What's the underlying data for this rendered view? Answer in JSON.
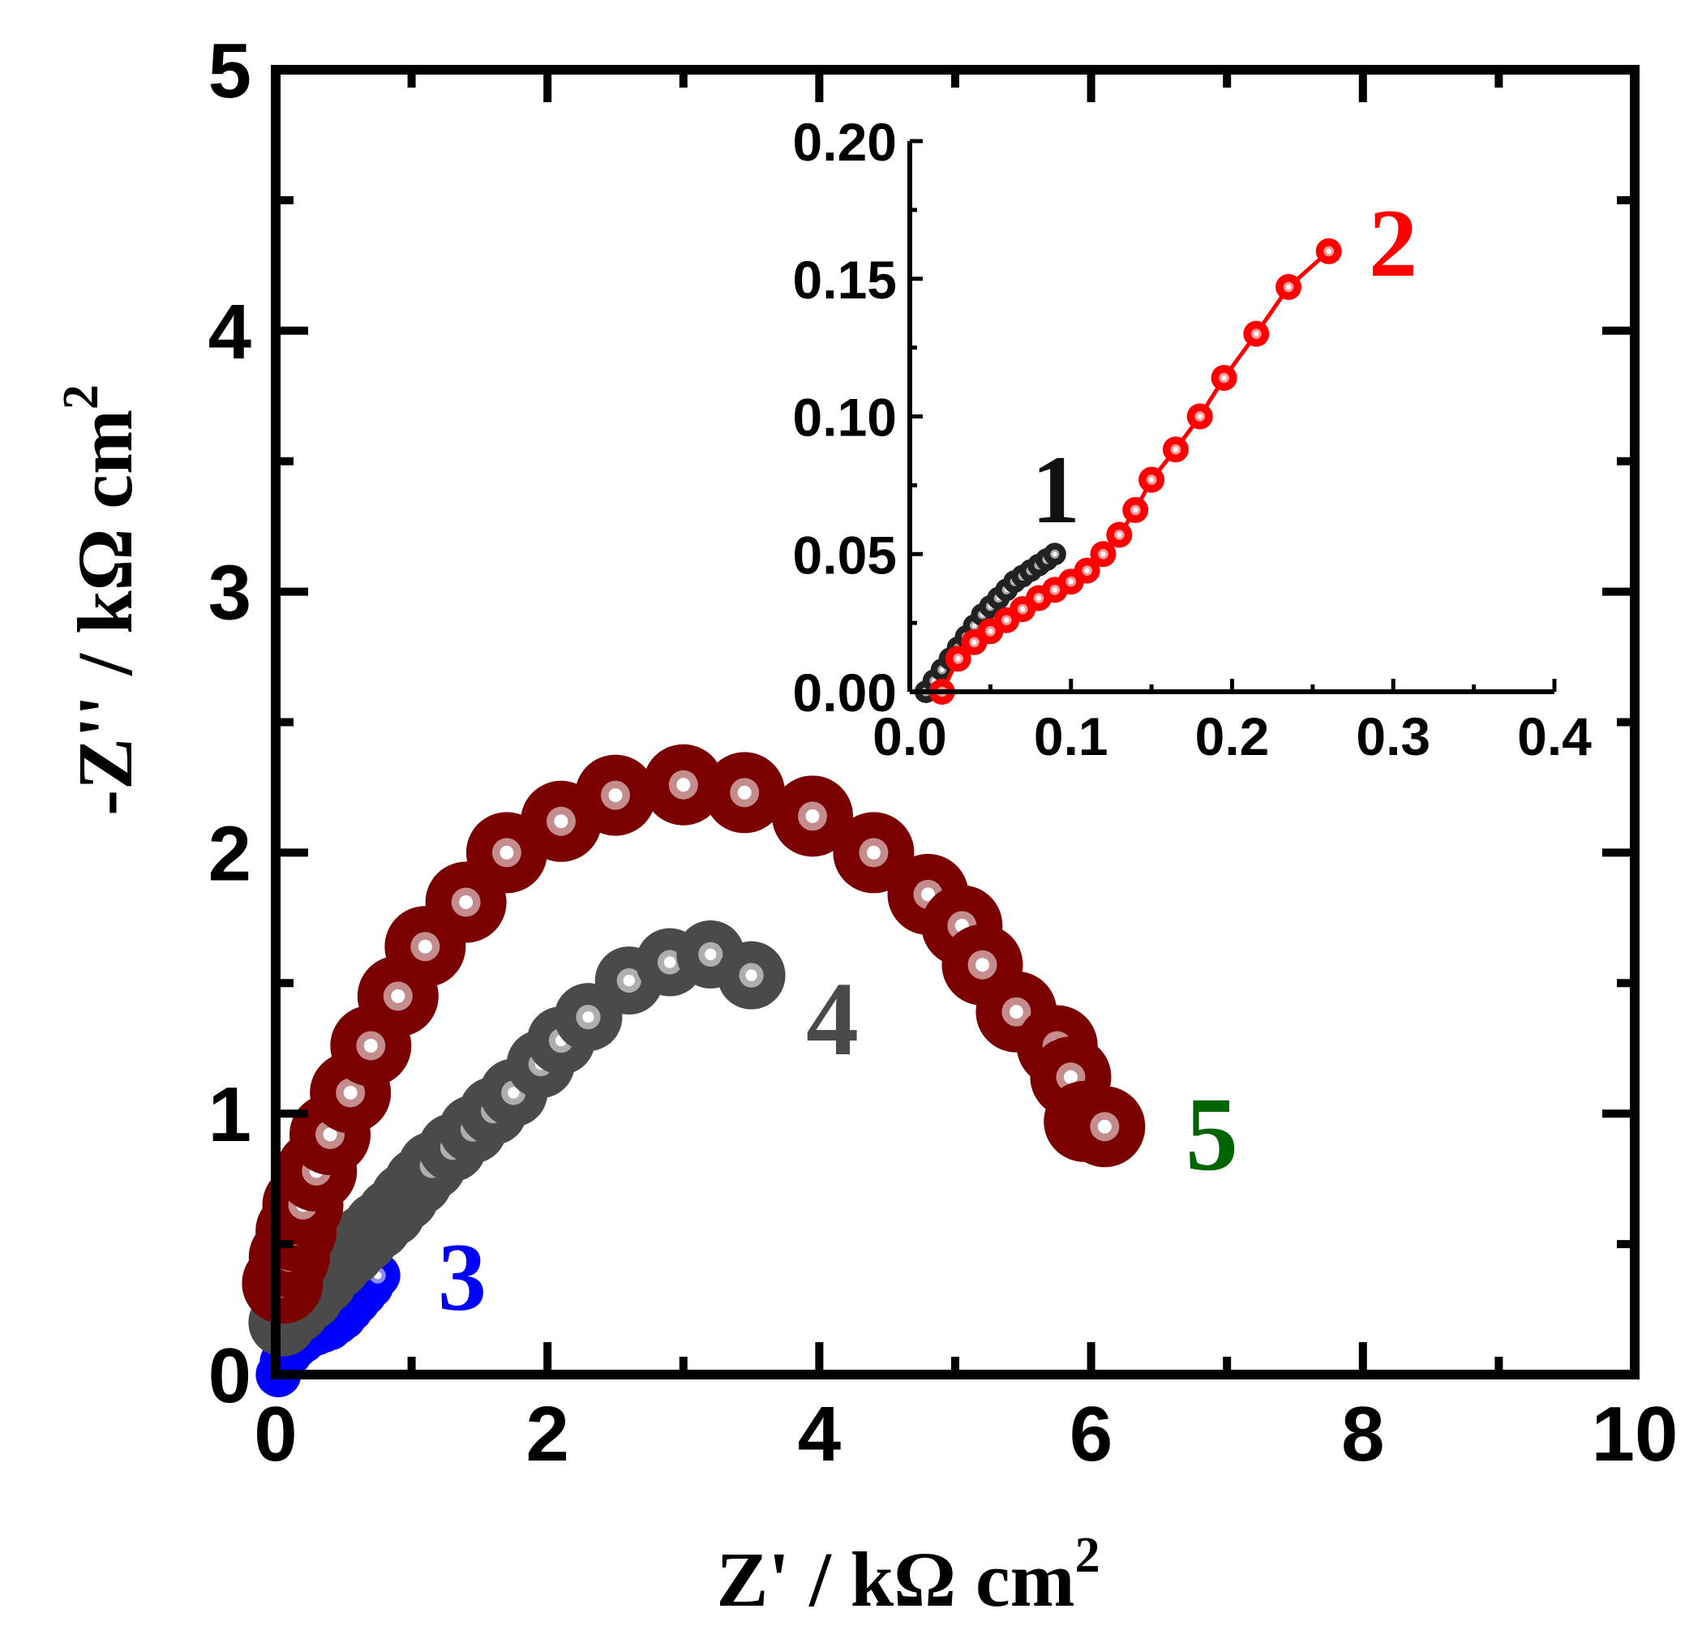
{
  "chart_data": {
    "type": "scatter",
    "title": "",
    "xlabel": "Z' / kΩ cm",
    "xlabel_sup": "2",
    "ylabel": "-Z'' / kΩ cm",
    "ylabel_sup": "2",
    "xlim": [
      0,
      10
    ],
    "ylim": [
      0,
      5
    ],
    "x_ticks": [
      "0",
      "2",
      "4",
      "6",
      "8",
      "10"
    ],
    "y_ticks": [
      "0",
      "1",
      "2",
      "3",
      "4",
      "5"
    ],
    "colors": {
      "s1": "#222222",
      "s2": "#ff0000",
      "s3": "#0000ff",
      "s4": "#4a4a4a",
      "s5": "#7b0000",
      "label5": "#006400"
    },
    "series": [
      {
        "name": "1",
        "x": [
          0.01,
          0.015,
          0.02,
          0.025,
          0.03,
          0.035,
          0.04,
          0.045,
          0.05,
          0.055,
          0.06,
          0.065,
          0.07,
          0.075,
          0.08,
          0.085,
          0.09
        ],
        "y": [
          0.0,
          0.004,
          0.008,
          0.012,
          0.016,
          0.02,
          0.024,
          0.028,
          0.031,
          0.034,
          0.037,
          0.04,
          0.042,
          0.044,
          0.046,
          0.048,
          0.05
        ]
      },
      {
        "name": "2",
        "x": [
          0.02,
          0.03,
          0.04,
          0.05,
          0.06,
          0.07,
          0.08,
          0.09,
          0.1,
          0.11,
          0.12,
          0.13,
          0.14,
          0.15,
          0.165,
          0.18,
          0.195,
          0.215,
          0.235,
          0.26
        ],
        "y": [
          0.0,
          0.012,
          0.018,
          0.022,
          0.026,
          0.03,
          0.034,
          0.037,
          0.04,
          0.044,
          0.05,
          0.057,
          0.066,
          0.077,
          0.088,
          0.1,
          0.114,
          0.13,
          0.147,
          0.16
        ]
      },
      {
        "name": "3",
        "x": [
          0.02,
          0.05,
          0.1,
          0.15,
          0.2,
          0.25,
          0.3,
          0.35,
          0.4,
          0.45,
          0.5,
          0.55,
          0.6,
          0.65,
          0.7,
          0.75
        ],
        "y": [
          0.0,
          0.05,
          0.08,
          0.11,
          0.13,
          0.15,
          0.16,
          0.17,
          0.18,
          0.2,
          0.22,
          0.25,
          0.28,
          0.31,
          0.34,
          0.38
        ]
      },
      {
        "name": "4",
        "x": [
          0.05,
          0.15,
          0.25,
          0.35,
          0.45,
          0.55,
          0.65,
          0.75,
          0.85,
          0.95,
          1.05,
          1.15,
          1.3,
          1.45,
          1.6,
          1.75,
          1.95,
          2.1,
          2.3,
          2.6,
          2.9,
          3.2,
          3.5
        ],
        "y": [
          0.2,
          0.25,
          0.3,
          0.36,
          0.42,
          0.47,
          0.52,
          0.57,
          0.62,
          0.68,
          0.74,
          0.8,
          0.87,
          0.94,
          1.01,
          1.08,
          1.19,
          1.28,
          1.37,
          1.51,
          1.58,
          1.61,
          1.53
        ]
      },
      {
        "name": "5",
        "x": [
          0.05,
          0.1,
          0.15,
          0.2,
          0.3,
          0.4,
          0.55,
          0.7,
          0.9,
          1.1,
          1.4,
          1.7,
          2.1,
          2.5,
          3.0,
          3.45,
          3.95,
          4.4,
          4.8,
          5.05,
          5.2,
          5.45,
          5.75,
          5.85,
          5.95,
          6.1
        ],
        "y": [
          0.35,
          0.45,
          0.55,
          0.65,
          0.78,
          0.92,
          1.08,
          1.26,
          1.45,
          1.64,
          1.81,
          2.0,
          2.12,
          2.22,
          2.26,
          2.23,
          2.14,
          2.0,
          1.84,
          1.72,
          1.57,
          1.39,
          1.26,
          1.14,
          0.97,
          0.95
        ]
      }
    ],
    "labels": {
      "s1": "1",
      "s2": "2",
      "s3": "3",
      "s4": "4",
      "s5": "5"
    },
    "inset": {
      "xlim": [
        0.0,
        0.4
      ],
      "ylim": [
        0.0,
        0.2
      ],
      "x_ticks": [
        "0.0",
        "0.1",
        "0.2",
        "0.3",
        "0.4"
      ],
      "y_ticks": [
        "0.00",
        "0.05",
        "0.10",
        "0.15",
        "0.20"
      ],
      "series_names": [
        "1",
        "2"
      ]
    }
  }
}
